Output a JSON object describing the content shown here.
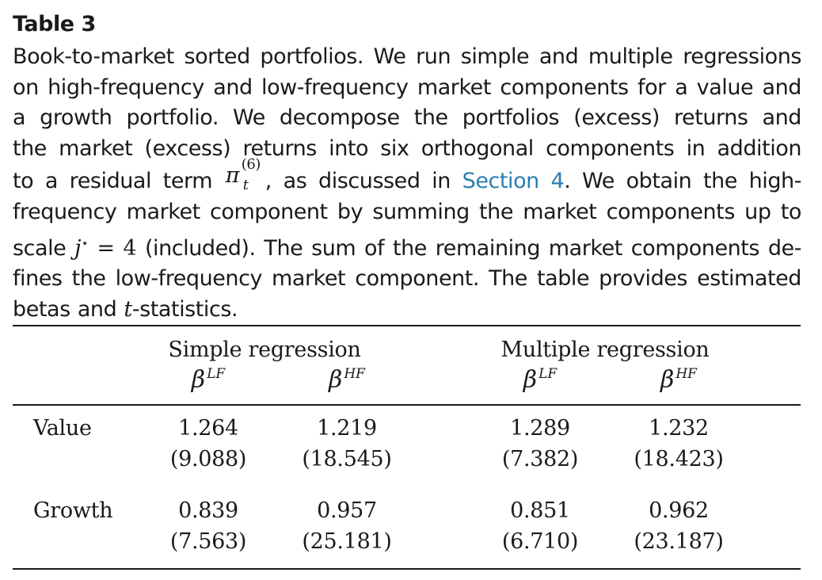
{
  "table_label": "Table 3",
  "caption": {
    "line1": "Book-to-market sorted portfolios. We run simple and multiple regressions",
    "line2": "on high-frequency and low-frequency market components for a value and",
    "line3": "a growth portfolio. We decompose the portfolios (excess) returns and",
    "line4": "the market (excess) returns into six orthogonal components in addition",
    "line5_pre": "to a residual term",
    "line5_pi": "π",
    "line5_pi_sup": "(6)",
    "line5_pi_sub": "t",
    "line5_mid": ", as discussed in",
    "line5_link": "Section 4",
    "line5_post": ". We obtain the high-",
    "line6": "frequency market component by summing the market components up to",
    "line7_pre": "scale",
    "line7_math_j": "j",
    "line7_math_star": "⋆",
    "line7_math_eq": " = 4",
    "line7_post": "(included). The sum of the remaining market components de-",
    "line8": "fines the low-frequency market component. The table provides estimated",
    "line9_pre": "betas and",
    "line9_t": "t",
    "line9_post": "-statistics."
  },
  "table": {
    "group_headers": [
      "Simple regression",
      "Multiple regression"
    ],
    "beta_symbol": "β",
    "column_superscripts": [
      "LF",
      "HF",
      "LF",
      "HF"
    ],
    "rows": [
      {
        "label": "Value",
        "betas": [
          "1.264",
          "1.219",
          "1.289",
          "1.232"
        ],
        "tstats": [
          "(9.088)",
          "(18.545)",
          "(7.382)",
          "(18.423)"
        ]
      },
      {
        "label": "Growth",
        "betas": [
          "0.839",
          "0.957",
          "0.851",
          "0.962"
        ],
        "tstats": [
          "(7.563)",
          "(25.181)",
          "(6.710)",
          "(23.187)"
        ]
      }
    ]
  },
  "colors": {
    "text": "#1a1a1a",
    "link": "#2a7fb0"
  }
}
